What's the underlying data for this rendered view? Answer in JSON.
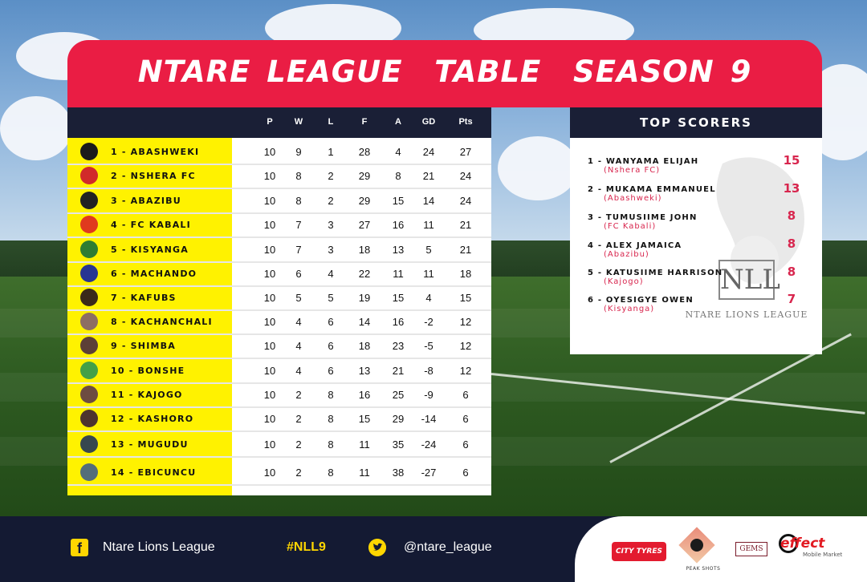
{
  "banner": {
    "title": "NTARE LEAGUE  TABLE  SEASON 9"
  },
  "table": {
    "columns": [
      "P",
      "W",
      "L",
      "F",
      "A",
      "GD",
      "Pts"
    ],
    "rows": [
      {
        "name": "1 - ABASHWEKI",
        "p": "10",
        "w": "9",
        "l": "1",
        "f": "28",
        "a": "4",
        "gd": "24",
        "pts": "27",
        "color": "#1b1b1b"
      },
      {
        "name": "2 - NSHERA FC",
        "p": "10",
        "w": "8",
        "l": "2",
        "f": "29",
        "a": "8",
        "gd": "21",
        "pts": "24",
        "color": "#d12a2a"
      },
      {
        "name": "3 - ABAZIBU",
        "p": "10",
        "w": "8",
        "l": "2",
        "f": "29",
        "a": "15",
        "gd": "14",
        "pts": "24",
        "color": "#222222"
      },
      {
        "name": "4 - FC KABALI",
        "p": "10",
        "w": "7",
        "l": "3",
        "f": "27",
        "a": "16",
        "gd": "11",
        "pts": "21",
        "color": "#e03a1e"
      },
      {
        "name": "5 - KISYANGA",
        "p": "10",
        "w": "7",
        "l": "3",
        "f": "18",
        "a": "13",
        "gd": "5",
        "pts": "21",
        "color": "#2e7d32"
      },
      {
        "name": "6 - MACHANDO",
        "p": "10",
        "w": "6",
        "l": "4",
        "f": "22",
        "a": "11",
        "gd": "11",
        "pts": "18",
        "color": "#283593"
      },
      {
        "name": "7 - KAFUBS",
        "p": "10",
        "w": "5",
        "l": "5",
        "f": "19",
        "a": "15",
        "gd": "4",
        "pts": "15",
        "color": "#3b2a1a"
      },
      {
        "name": "8 - KACHANCHALI",
        "p": "10",
        "w": "4",
        "l": "6",
        "f": "14",
        "a": "16",
        "gd": "-2",
        "pts": "12",
        "color": "#8d6e63"
      },
      {
        "name": "9 - SHIMBA",
        "p": "10",
        "w": "4",
        "l": "6",
        "f": "18",
        "a": "23",
        "gd": "-5",
        "pts": "12",
        "color": "#5d4037"
      },
      {
        "name": "10 - BONSHE",
        "p": "10",
        "w": "4",
        "l": "6",
        "f": "13",
        "a": "21",
        "gd": "-8",
        "pts": "12",
        "color": "#43a047"
      },
      {
        "name": "11 - KAJOGO",
        "p": "10",
        "w": "2",
        "l": "8",
        "f": "16",
        "a": "25",
        "gd": "-9",
        "pts": "6",
        "color": "#6d4c41"
      },
      {
        "name": "12 - KASHORO",
        "p": "10",
        "w": "2",
        "l": "8",
        "f": "15",
        "a": "29",
        "gd": "-14",
        "pts": "6",
        "color": "#4e342e"
      },
      {
        "name": "13 - MUGUDU",
        "p": "10",
        "w": "2",
        "l": "8",
        "f": "11",
        "a": "35",
        "gd": "-24",
        "pts": "6",
        "color": "#37474f"
      },
      {
        "name": "14 - EBICUNCU",
        "p": "10",
        "w": "2",
        "l": "8",
        "f": "11",
        "a": "38",
        "gd": "-27",
        "pts": "6",
        "color": "#546e7a"
      }
    ]
  },
  "scorers": {
    "title": "TOP SCORERS",
    "items": [
      {
        "name": "1 - WANYAMA ELIJAH",
        "team": "(Nshera FC)",
        "goals": "15"
      },
      {
        "name": "2 - MUKAMA EMMANUEL",
        "team": "(Abashweki)",
        "goals": "13"
      },
      {
        "name": "3 - TUMUSIIME JOHN",
        "team": "(FC Kabali)",
        "goals": "8"
      },
      {
        "name": "4 - ALEX JAMAICA",
        "team": "(Abazibu)",
        "goals": "8"
      },
      {
        "name": "5 - KATUSIIME HARRISON",
        "team": "(Kajogo)",
        "goals": "8"
      },
      {
        "name": "6 - OYESIGYE OWEN",
        "team": "(Kisyanga)",
        "goals": "7"
      }
    ],
    "watermark": {
      "initials": "NLL",
      "subtitle": "NTARE LIONS LEAGUE"
    }
  },
  "footer": {
    "facebook_icon": "facebook-icon",
    "facebook": "Ntare Lions League",
    "hashtag": "#NLL9",
    "twitter_icon": "twitter-icon",
    "twitter": "@ntare_league"
  },
  "sponsors": {
    "city": "CITY TYRES",
    "peak": "PEAK SHOTS",
    "gems": "GEMS",
    "effect": "effect",
    "effect_sub": "Mobile Market"
  }
}
